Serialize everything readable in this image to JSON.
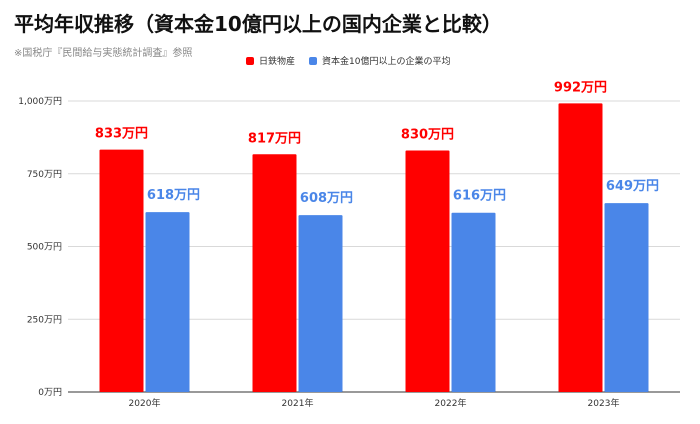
{
  "title": "平均年収推移（資本金10億円以上の国内企業と比較）",
  "subtitle": "※国税庁『民間給与実態統計調査』参照",
  "chart_data": {
    "type": "bar",
    "title": "平均年収推移（資本金10億円以上の国内企業と比較）",
    "subtitle": "※国税庁『民間給与実態統計調査』参照",
    "categories": [
      "2020年",
      "2021年",
      "2022年",
      "2023年"
    ],
    "series": [
      {
        "name": "日鉄物産",
        "values": [
          833,
          817,
          830,
          992
        ],
        "labels": [
          "833万円",
          "817万円",
          "830万円",
          "992万円"
        ],
        "color": "#ff0000"
      },
      {
        "name": "資本金10億円以上の企業の平均",
        "values": [
          618,
          608,
          616,
          649
        ],
        "labels": [
          "618万円",
          "608万円",
          "616万円",
          "649万円"
        ],
        "color": "#4a86e8"
      }
    ],
    "y_ticks": [
      0,
      250,
      500,
      750,
      1000
    ],
    "y_tick_labels": [
      "0万円",
      "250万円",
      "500万円",
      "750万円",
      "1,000万円"
    ],
    "ylim": [
      0,
      1000
    ],
    "grid": true,
    "legend_position": "top"
  }
}
